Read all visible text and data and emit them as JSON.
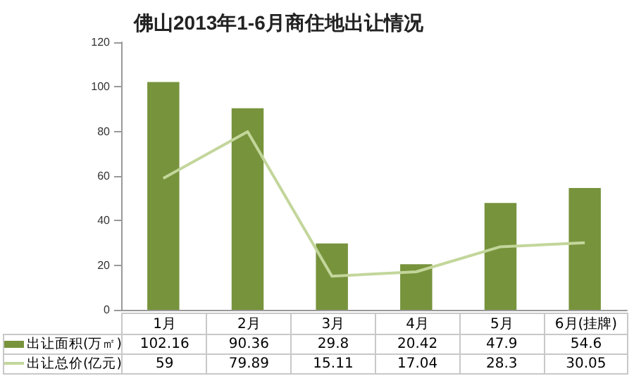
{
  "chart_data": {
    "type": "bar",
    "title": "佛山2013年1-6月商住地出让情况",
    "categories": [
      "1月",
      "2月",
      "3月",
      "4月",
      "5月",
      "6月(挂牌)"
    ],
    "series": [
      {
        "name": "出让面积(万㎡)",
        "color": "#77933c",
        "values": [
          102.16,
          90.36,
          29.8,
          20.42,
          47.9,
          54.6
        ]
      },
      {
        "name": "出让总价(亿元)",
        "type": "line",
        "color": "#c3d69b",
        "values": [
          59,
          79.89,
          15.11,
          17.04,
          28.3,
          30.05
        ]
      }
    ],
    "ylim": [
      0,
      120
    ],
    "yticks": [
      0,
      20,
      40,
      60,
      80,
      100,
      120
    ],
    "grid": false,
    "legend": "bottom",
    "data_labels": true,
    "marker": "none"
  }
}
